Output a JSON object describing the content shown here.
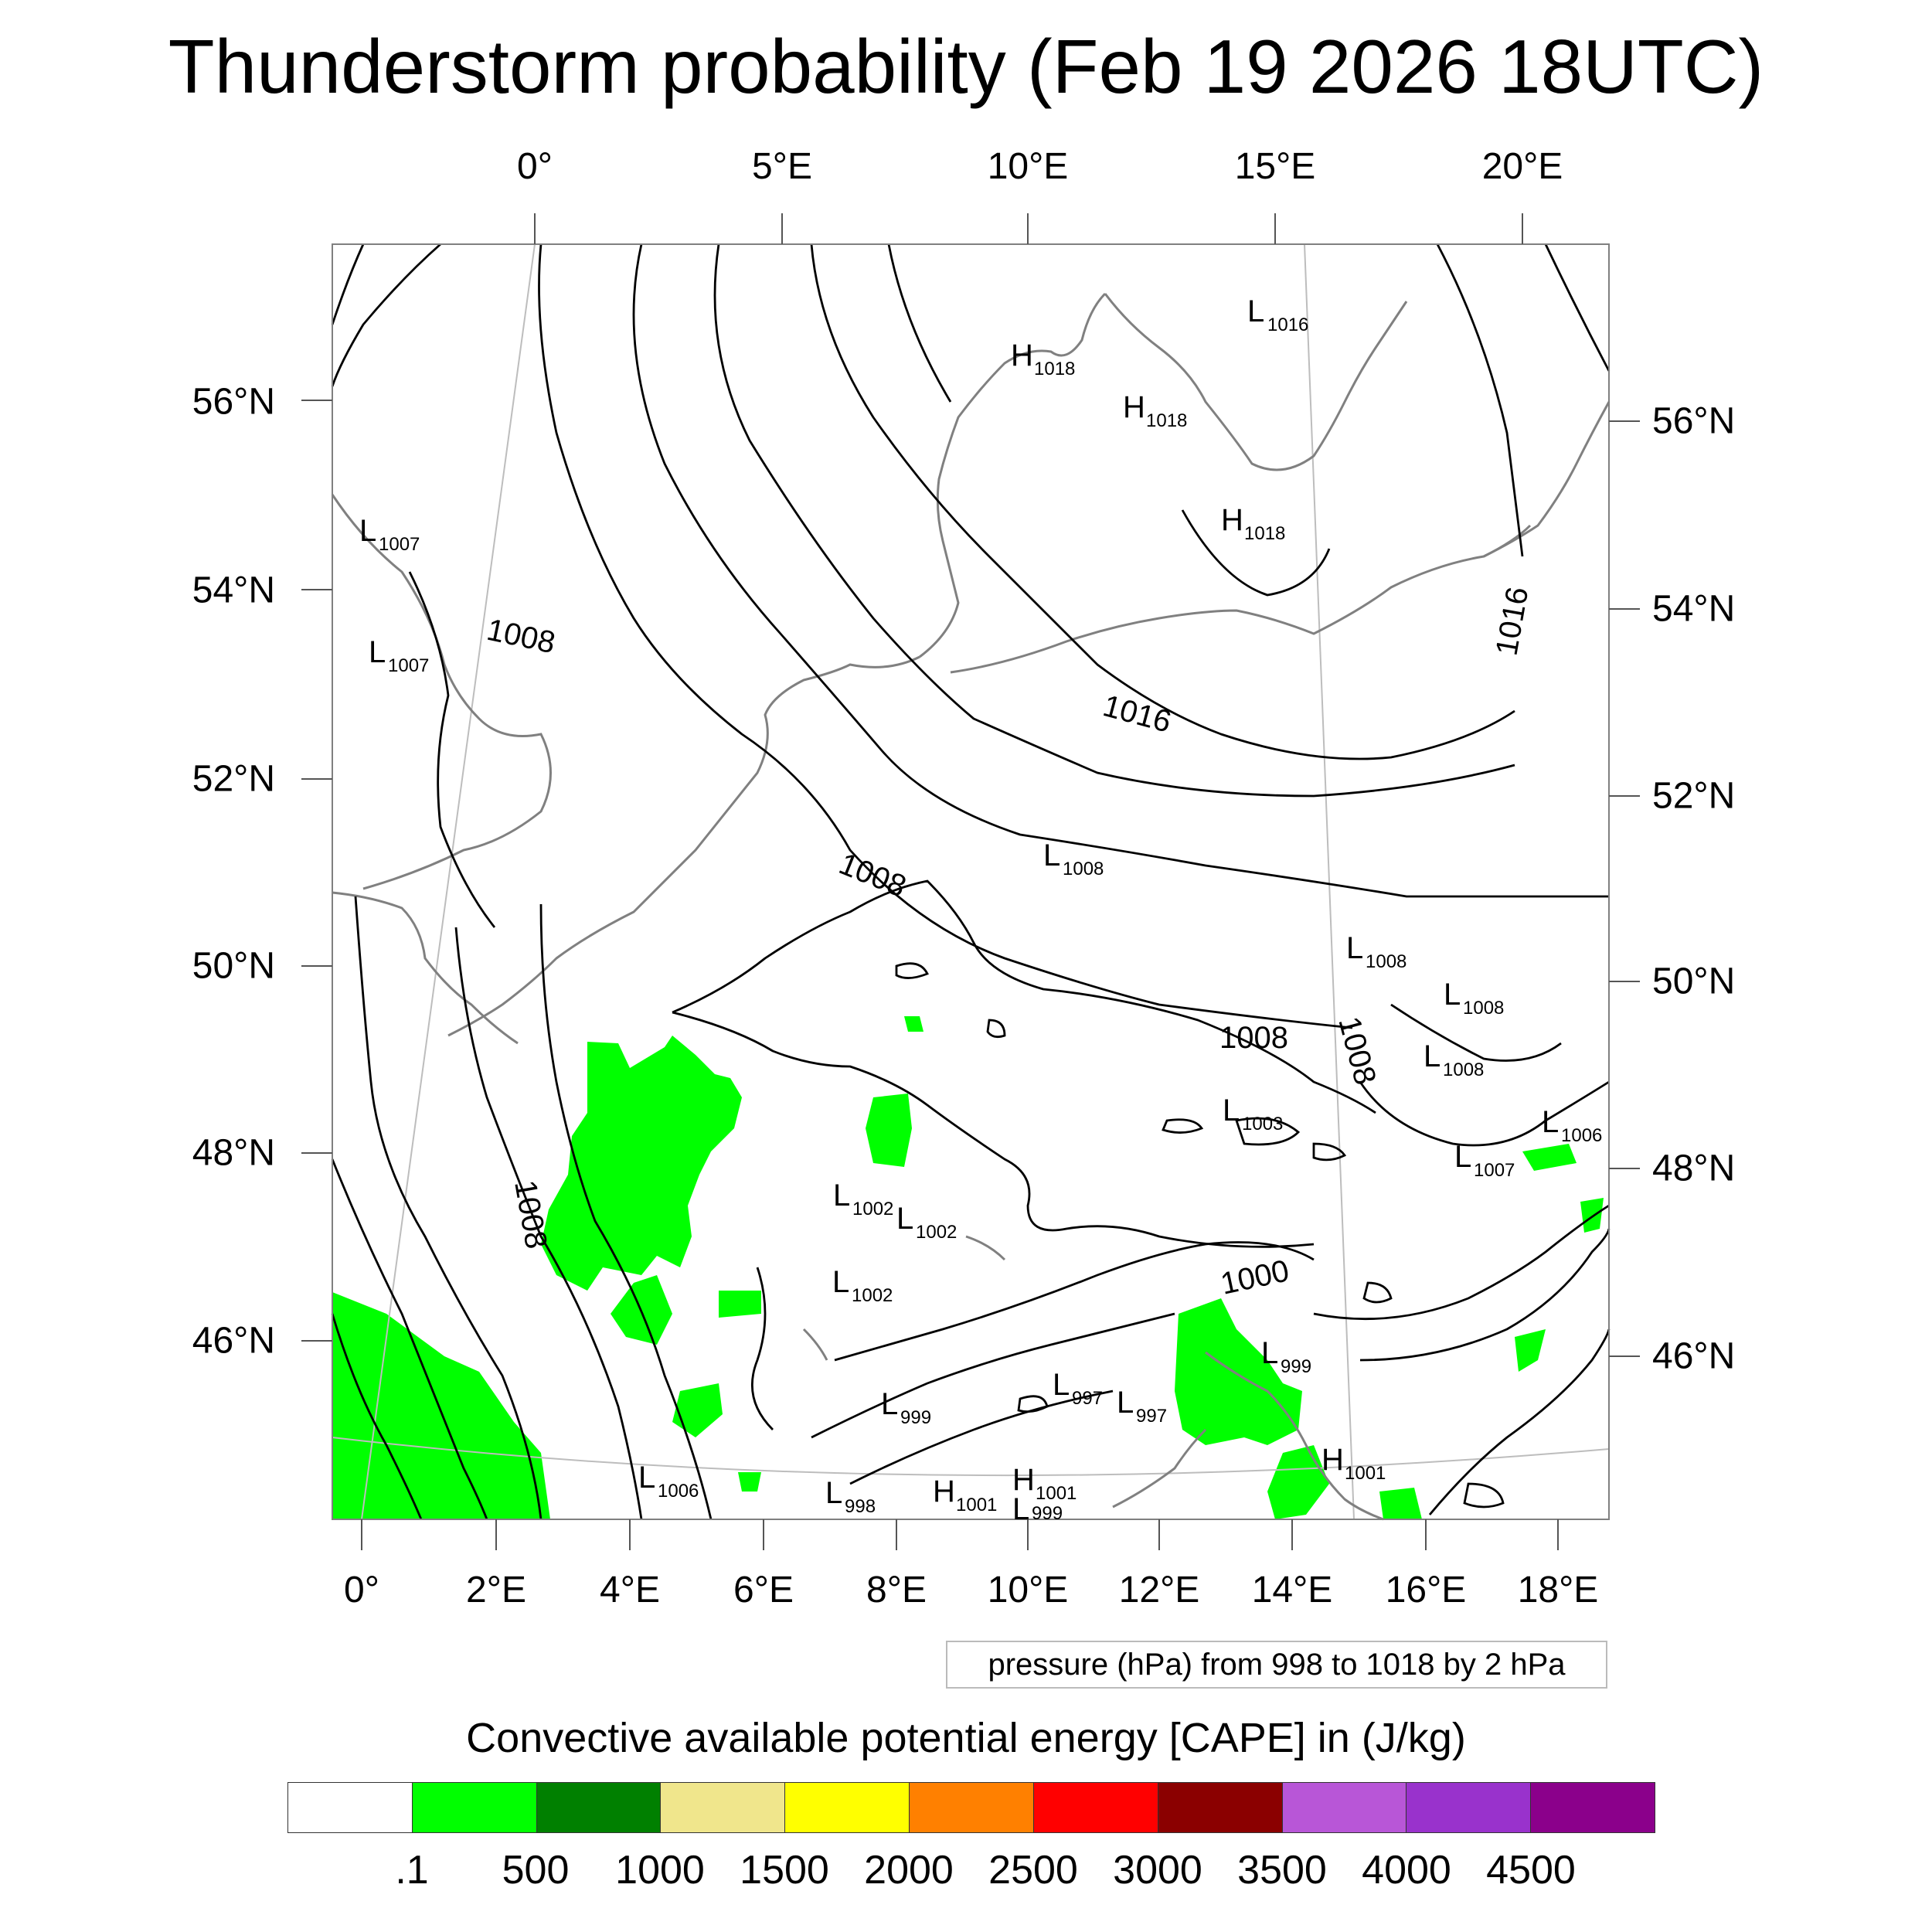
{
  "title": "Thunderstorm probability (Feb 19 2026 18UTC)",
  "top_lon_labels": [
    "0°",
    "5°E",
    "10°E",
    "15°E",
    "20°E"
  ],
  "bottom_lon_labels": [
    "0°",
    "2°E",
    "4°E",
    "6°E",
    "8°E",
    "10°E",
    "12°E",
    "14°E",
    "16°E",
    "18°E"
  ],
  "left_lat_labels": [
    "56°N",
    "54°N",
    "52°N",
    "50°N",
    "48°N",
    "46°N"
  ],
  "right_lat_labels": [
    "56°N",
    "54°N",
    "52°N",
    "50°N",
    "48°N",
    "46°N"
  ],
  "isobar_labels": [
    "1008",
    "1008",
    "1016",
    "1016",
    "1008",
    "1008",
    "1008",
    "1008",
    "1000"
  ],
  "pressure_centers": [
    {
      "type": "L",
      "value": "1016"
    },
    {
      "type": "H",
      "value": "1018"
    },
    {
      "type": "H",
      "value": "1018"
    },
    {
      "type": "H",
      "value": "1018"
    },
    {
      "type": "L",
      "value": "1007"
    },
    {
      "type": "L",
      "value": "1007"
    },
    {
      "type": "L",
      "value": "1008"
    },
    {
      "type": "L",
      "value": "1008"
    },
    {
      "type": "L",
      "value": "1008"
    },
    {
      "type": "L",
      "value": "1008"
    },
    {
      "type": "L",
      "value": "1003"
    },
    {
      "type": "L",
      "value": "1006"
    },
    {
      "type": "L",
      "value": "1007"
    },
    {
      "type": "L",
      "value": "1002"
    },
    {
      "type": "L",
      "value": "1002"
    },
    {
      "type": "L",
      "value": "1002"
    },
    {
      "type": "L",
      "value": "999"
    },
    {
      "type": "L",
      "value": "997"
    },
    {
      "type": "L",
      "value": "997"
    },
    {
      "type": "L",
      "value": "999"
    },
    {
      "type": "L",
      "value": "1006"
    },
    {
      "type": "L",
      "value": "998"
    },
    {
      "type": "H",
      "value": "1001"
    },
    {
      "type": "H",
      "value": "1001"
    },
    {
      "type": "L",
      "value": "999"
    },
    {
      "type": "H",
      "value": "1001"
    }
  ],
  "pressure_note": "pressure (hPa) from 998 to 1018 by 2 hPa",
  "colorbar": {
    "title": "Convective available potential energy [CAPE] in (J/kg)",
    "colors": [
      "#ffffff",
      "#00ff00",
      "#008000",
      "#f0e68c",
      "#ffff00",
      "#ff8000",
      "#ff0000",
      "#8b0000",
      "#b856d7",
      "#9932cc",
      "#8b008b"
    ],
    "tick_labels": [
      ".1",
      "500",
      "1000",
      "1500",
      "2000",
      "2500",
      "3000",
      "3500",
      "4000",
      "4500"
    ]
  },
  "colors": {
    "cape_fill": "#00ff00",
    "coastline": "#808080",
    "isobar": "#000000"
  }
}
